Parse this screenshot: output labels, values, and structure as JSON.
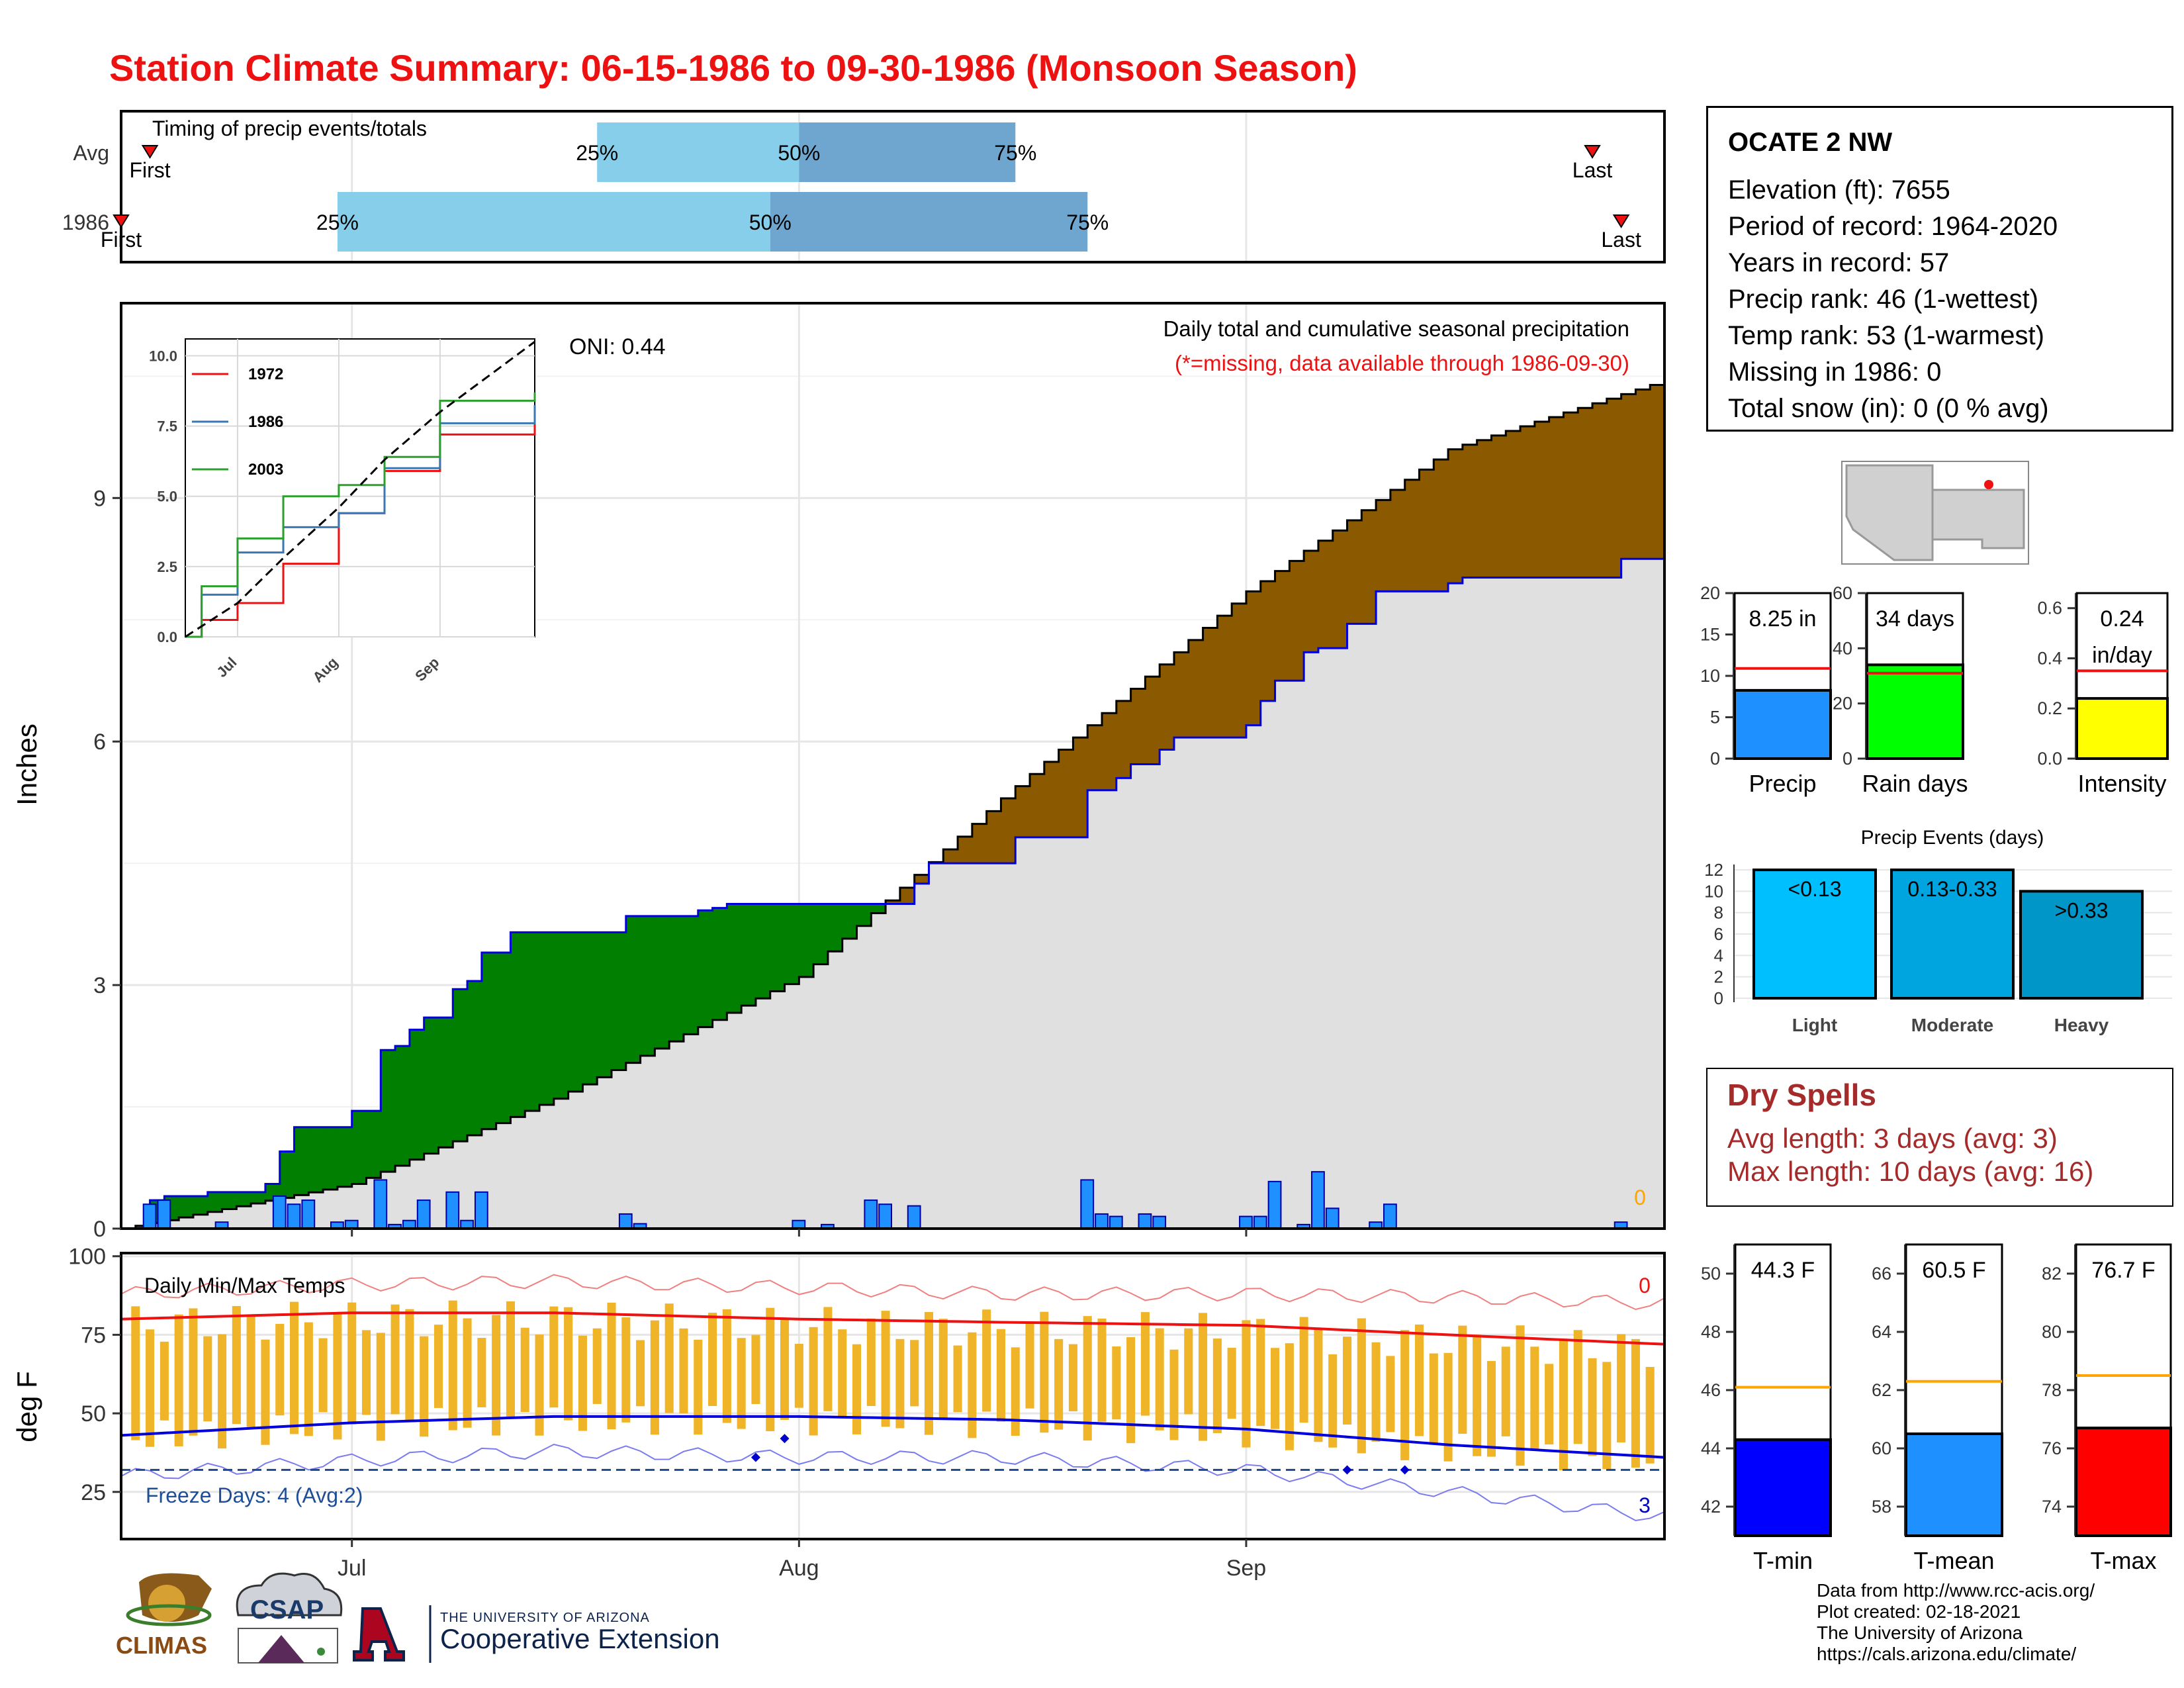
{
  "title": "Station Climate Summary: 06-15-1986 to 09-30-1986 (Monsoon Season)",
  "colors": {
    "title": "#ee1111",
    "bar_light": "#87ceeb",
    "bar_dark": "#6fa6cf",
    "cum_surplus": "#007f00",
    "cum_deficit": "#8b5a00",
    "cum_area": "#e0e0e0",
    "precip_bar": "#1e90ff",
    "temp_bar": "#f0b429",
    "tmax_line": "#ee1111",
    "tmin_line": "#0000dd",
    "dry_spells": "#a52a2a"
  },
  "timing": {
    "label": "Timing of precip events/totals",
    "rows": [
      {
        "name": "Avg",
        "first_label": "First",
        "last_label": "Last",
        "p25": "25%",
        "p50": "50%",
        "p75": "75%"
      },
      {
        "name": "1986",
        "first_label": "First",
        "last_label": "Last",
        "p25": "25%",
        "p50": "50%",
        "p75": "75%"
      }
    ]
  },
  "precip_panel": {
    "ylabel": "Inches",
    "yticks": [
      "0",
      "3",
      "6",
      "9"
    ],
    "oni": "ONI: 0.44",
    "note1": "Daily total and cumulative seasonal precipitation",
    "note2": "(*=missing, data available through 1986-09-30)",
    "zero_marker": "0"
  },
  "inset": {
    "yticks": [
      "0.0",
      "2.5",
      "5.0",
      "7.5",
      "10.0"
    ],
    "xticks": [
      "Jul",
      "Aug",
      "Sep"
    ],
    "legend": [
      "1972",
      "1986",
      "2003"
    ]
  },
  "temp_panel": {
    "ylabel": "deg F",
    "label": "Daily Min/Max Temps",
    "yticks": [
      "25",
      "50",
      "75",
      "100"
    ],
    "freeze": "Freeze Days: 4 (Avg:2)",
    "top_count": "0",
    "bottom_count": "3",
    "xticks": [
      "Jul",
      "Aug",
      "Sep"
    ]
  },
  "station": {
    "name": "OCATE 2 NW",
    "lines": [
      "Elevation (ft): 7655",
      "Period of record: 1964-2020",
      "Years in record: 57",
      "Precip rank: 46 (1-wettest)",
      "Temp rank: 53 (1-warmest)",
      "Missing in 1986: 0",
      "Total snow (in): 0 (0 % avg)"
    ]
  },
  "mini_bars": {
    "precip": {
      "label": "Precip",
      "value_text": "8.25 in",
      "yticks": [
        "0",
        "5",
        "10",
        "15",
        "20"
      ]
    },
    "rain_days": {
      "label": "Rain days",
      "value_text": "34 days",
      "yticks": [
        "0",
        "20",
        "40",
        "60"
      ]
    },
    "intensity": {
      "label": "Intensity",
      "value_text": "0.24",
      "value_unit": "in/day",
      "yticks": [
        "0.0",
        "0.2",
        "0.4",
        "0.6"
      ]
    }
  },
  "events": {
    "title": "Precip Events (days)",
    "yticks": [
      "0",
      "2",
      "4",
      "6",
      "8",
      "10",
      "12"
    ],
    "categories": [
      "Light",
      "Moderate",
      "Heavy"
    ],
    "labels": [
      "<0.13",
      "0.13-0.33",
      ">0.33"
    ]
  },
  "dry_spells": {
    "title": "Dry Spells",
    "avg": "Avg length: 3 days (avg: 3)",
    "max": "Max length: 10 days (avg: 16)"
  },
  "temp_bars": {
    "tmin": {
      "label": "T-min",
      "value_text": "44.3 F",
      "yticks": [
        "42",
        "44",
        "46",
        "48",
        "50"
      ]
    },
    "tmean": {
      "label": "T-mean",
      "value_text": "60.5 F",
      "yticks": [
        "58",
        "60",
        "62",
        "64",
        "66"
      ]
    },
    "tmax": {
      "label": "T-max",
      "value_text": "76.7 F",
      "yticks": [
        "74",
        "76",
        "78",
        "80",
        "82"
      ]
    }
  },
  "credits": [
    "Data from http://www.rcc-acis.org/",
    "Plot created: 02-18-2021",
    "The University of Arizona",
    "https://cals.arizona.edu/climate/"
  ],
  "logos": {
    "climas": "CLIMAS",
    "csap": "CSAP",
    "ua_top": "THE UNIVERSITY OF ARIZONA",
    "ua_bottom": "Cooperative Extension"
  },
  "chart_data": [
    {
      "type": "bar",
      "title": "Timing of precip events/totals",
      "categories": [
        "Avg",
        "1986"
      ],
      "series": [
        {
          "name": "Avg",
          "values": {
            "first": "06-17",
            "p25": "07-18",
            "p50": "08-01",
            "p75": "08-16",
            "last": "09-25"
          }
        },
        {
          "name": "1986",
          "values": {
            "first": "06-15",
            "p25": "06-30",
            "p50": "07-30",
            "p75": "08-21",
            "last": "09-27"
          }
        }
      ]
    },
    {
      "type": "area",
      "title": "Daily total and cumulative seasonal precipitation",
      "x_range": [
        "06-15",
        "09-30"
      ],
      "ylabel": "Inches",
      "ylim": [
        0,
        11.4
      ],
      "series": [
        {
          "name": "1986",
          "x": [
            "06-15",
            "06-17",
            "06-18",
            "06-21",
            "06-25",
            "06-26",
            "06-27",
            "07-01",
            "07-03",
            "07-04",
            "07-05",
            "07-06",
            "07-08",
            "07-09",
            "07-10",
            "07-12",
            "07-20",
            "07-25",
            "07-26",
            "07-27",
            "08-05",
            "08-09",
            "08-10",
            "08-16",
            "08-21",
            "08-23",
            "08-24",
            "08-26",
            "08-27",
            "09-01",
            "09-02",
            "09-03",
            "09-05",
            "09-06",
            "09-08",
            "09-10",
            "09-15",
            "09-16",
            "09-27",
            "09-30"
          ],
          "values": [
            0.0,
            0.35,
            0.4,
            0.45,
            0.55,
            0.95,
            1.25,
            1.45,
            2.2,
            2.25,
            2.45,
            2.6,
            2.95,
            3.05,
            3.4,
            3.65,
            3.85,
            3.92,
            3.95,
            4.0,
            4.0,
            4.25,
            4.5,
            4.82,
            5.4,
            5.55,
            5.72,
            5.9,
            6.05,
            6.2,
            6.5,
            6.75,
            7.1,
            7.15,
            7.45,
            7.85,
            7.95,
            8.02,
            8.25,
            8.25
          ]
        },
        {
          "name": "Avg",
          "x": [
            "06-15",
            "07-01",
            "07-15",
            "08-01",
            "08-15",
            "09-01",
            "09-15",
            "09-30"
          ],
          "values": [
            0.0,
            0.55,
            1.6,
            3.1,
            5.3,
            7.85,
            9.6,
            10.45
          ]
        },
        {
          "name": "Daily precip",
          "x": [
            "06-17",
            "06-18",
            "06-22",
            "06-26",
            "06-27",
            "06-28",
            "06-30",
            "07-01",
            "07-03",
            "07-04",
            "07-05",
            "07-06",
            "07-08",
            "07-09",
            "07-10",
            "07-20",
            "07-21",
            "08-01",
            "08-03",
            "08-06",
            "08-07",
            "08-09",
            "08-21",
            "08-22",
            "08-23",
            "08-25",
            "08-26",
            "09-01",
            "09-02",
            "09-03",
            "09-05",
            "09-06",
            "09-07",
            "09-10",
            "09-11",
            "09-27"
          ],
          "values": [
            0.3,
            0.35,
            0.08,
            0.4,
            0.3,
            0.35,
            0.08,
            0.1,
            0.6,
            0.05,
            0.1,
            0.35,
            0.45,
            0.1,
            0.45,
            0.18,
            0.06,
            0.1,
            0.05,
            0.35,
            0.3,
            0.28,
            0.6,
            0.18,
            0.15,
            0.18,
            0.15,
            0.15,
            0.15,
            0.58,
            0.05,
            0.7,
            0.25,
            0.08,
            0.3,
            0.08
          ]
        }
      ]
    },
    {
      "type": "line",
      "title": "Inset cumulative precipitation",
      "ylim": [
        0,
        10
      ],
      "series": [
        {
          "name": "1972",
          "x": [
            "06-15",
            "06-20",
            "07-01",
            "07-15",
            "08-01",
            "08-15",
            "09-01",
            "09-30"
          ],
          "values": [
            0.0,
            0.6,
            1.2,
            2.6,
            4.4,
            5.9,
            7.2,
            7.9
          ]
        },
        {
          "name": "1986",
          "x": [
            "06-15",
            "06-20",
            "07-01",
            "07-15",
            "08-01",
            "08-15",
            "09-01",
            "09-30"
          ],
          "values": [
            0.0,
            1.5,
            3.0,
            3.9,
            4.4,
            6.0,
            7.6,
            8.25
          ]
        },
        {
          "name": "2003",
          "x": [
            "06-15",
            "06-20",
            "07-01",
            "07-15",
            "08-01",
            "08-15",
            "09-01",
            "09-30"
          ],
          "values": [
            0.0,
            1.8,
            3.5,
            5.0,
            5.4,
            6.4,
            8.4,
            8.7
          ]
        },
        {
          "name": "Avg",
          "x": [
            "06-15",
            "07-01",
            "07-15",
            "08-01",
            "08-15",
            "09-01",
            "09-30"
          ],
          "values": [
            0.0,
            1.2,
            2.8,
            4.6,
            6.3,
            8.0,
            10.5
          ]
        }
      ]
    },
    {
      "type": "line",
      "title": "Daily Min/Max Temps",
      "ylabel": "deg F",
      "ylim": [
        10,
        100
      ],
      "x": [
        "06-15",
        "07-01",
        "07-15",
        "08-01",
        "08-15",
        "09-01",
        "09-15",
        "09-30"
      ],
      "series": [
        {
          "name": "Avg max",
          "values": [
            80,
            82,
            82,
            80,
            79,
            78,
            75,
            72
          ]
        },
        {
          "name": "Avg min",
          "values": [
            43,
            47,
            49,
            49,
            48,
            45,
            40,
            36
          ]
        },
        {
          "name": "Record high",
          "values": [
            88,
            91,
            92,
            90,
            88,
            88,
            87,
            85
          ]
        },
        {
          "name": "Record low",
          "values": [
            30,
            35,
            38,
            36,
            36,
            32,
            25,
            17
          ]
        }
      ],
      "freeze_line": 32
    },
    {
      "type": "bar",
      "categories": [
        "Precip",
        "Rain days",
        "Intensity"
      ],
      "values": [
        8.25,
        34,
        0.24
      ],
      "averages": [
        10.9,
        31,
        0.35
      ],
      "ylims": [
        [
          0,
          20
        ],
        [
          0,
          60
        ],
        [
          0,
          0.6
        ]
      ]
    },
    {
      "type": "bar",
      "title": "Precip Events (days)",
      "categories": [
        "Light",
        "Moderate",
        "Heavy"
      ],
      "values": [
        12,
        12,
        10
      ],
      "ylim": [
        0,
        12
      ]
    },
    {
      "type": "bar",
      "categories": [
        "T-min",
        "T-mean",
        "T-max"
      ],
      "values": [
        44.3,
        60.5,
        76.7
      ],
      "averages": [
        46.1,
        62.3,
        78.5
      ],
      "ylims": [
        [
          41,
          51
        ],
        [
          57,
          67
        ],
        [
          73,
          83
        ]
      ]
    }
  ]
}
